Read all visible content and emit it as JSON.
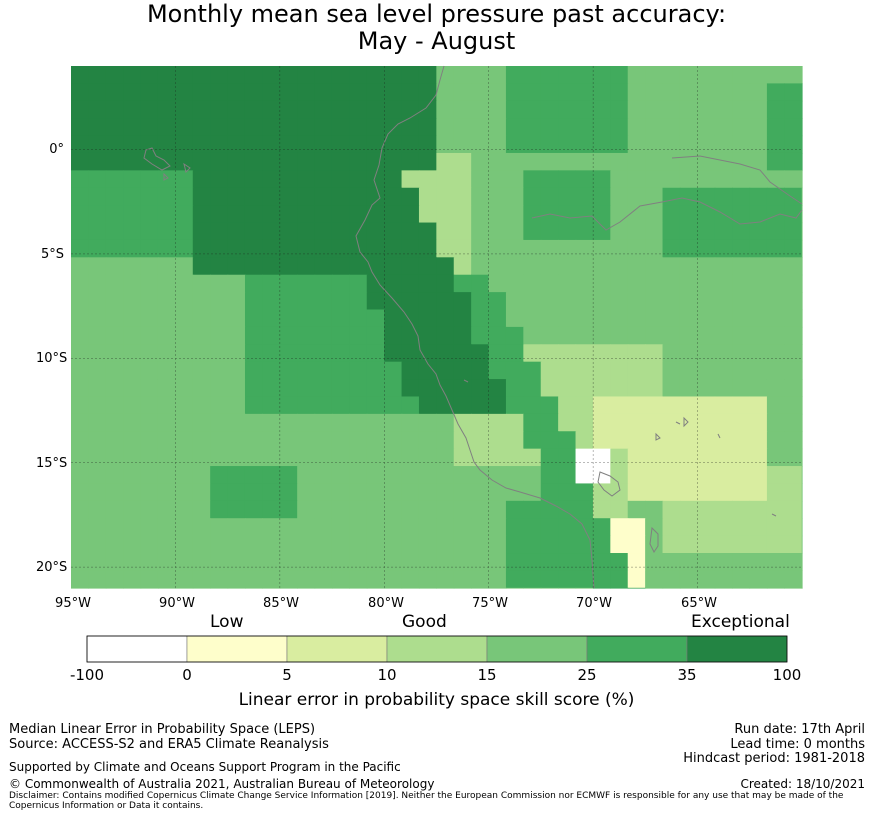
{
  "title": {
    "line1": "Monthly mean sea level pressure past accuracy:",
    "line2": "May - August"
  },
  "map": {
    "lat_ticks": [
      "0°",
      "5°S",
      "10°S",
      "15°S",
      "20°S"
    ],
    "lon_ticks": [
      "95°W",
      "90°W",
      "85°W",
      "80°W",
      "75°W",
      "70°W",
      "65°W"
    ],
    "extent": {
      "lon": [
        -95,
        -60
      ],
      "lat": [
        -21,
        4
      ]
    }
  },
  "colorbar": {
    "labels": {
      "low": "Low",
      "good": "Good",
      "exceptional": "Exceptional"
    },
    "ticks": [
      "-100",
      "0",
      "5",
      "10",
      "15",
      "25",
      "35",
      "100"
    ],
    "colors": [
      "#ffffff",
      "#fefecb",
      "#d9eda0",
      "#addd8e",
      "#78c679",
      "#41ab5d",
      "#238443"
    ],
    "title": "Linear error in probability space skill score (%)"
  },
  "footer": {
    "metric": "Median Linear Error in Probability Space (LEPS)",
    "source": "Source: ACCESS-S2 and ERA5 Climate Reanalysis",
    "support": "Supported by Climate and Oceans Support Program in the Pacific",
    "copyright": "© Commonwealth of Australia 2021, Australian Bureau of Meteorology",
    "run_date": "Run date: 17th April",
    "lead_time": "Lead time: 0 months",
    "hindcast": "Hindcast period: 1981-2018",
    "created": "Created: 18/10/2021",
    "disclaimer_line1": "Disclaimer: Contains modified Copernicus Climate Change Service Information [2019]. Neither the European Commission nor ECMWF is responsible for any use that may be made of the",
    "disclaimer_line2": "Copernicus Information or Data it contains."
  }
}
